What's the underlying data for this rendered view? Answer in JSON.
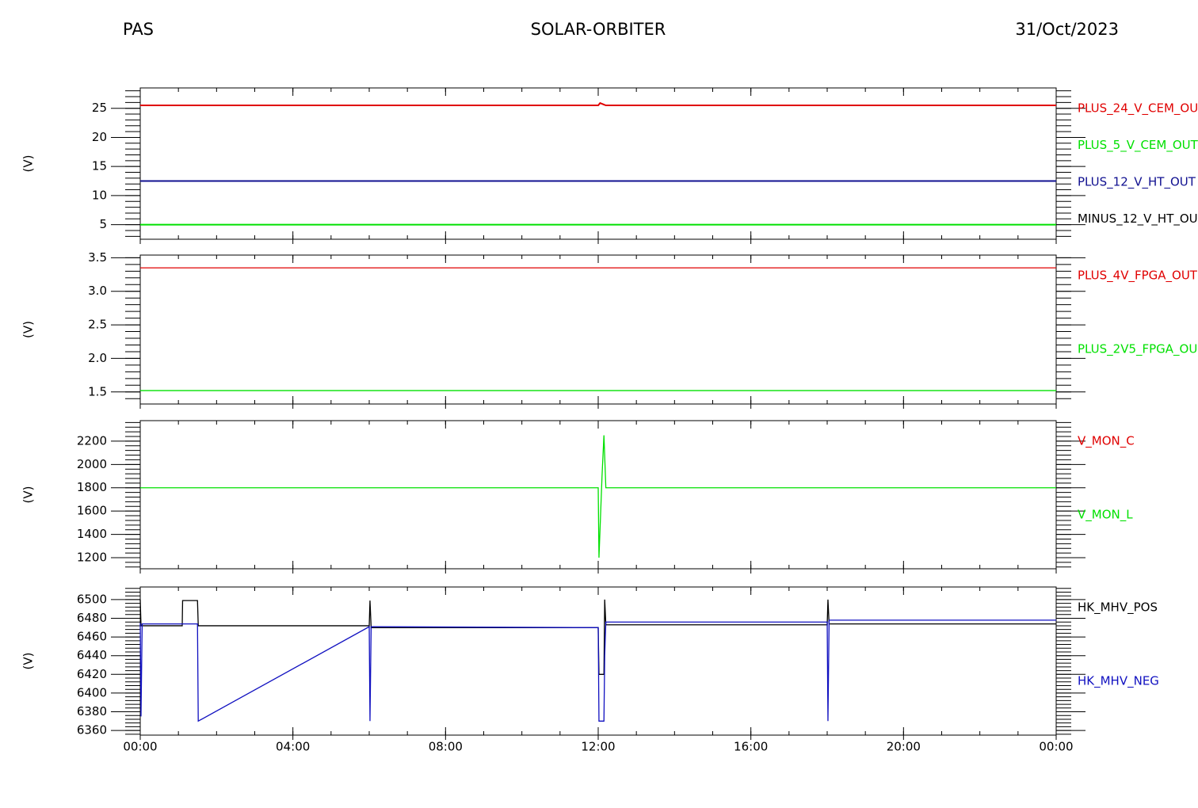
{
  "header": {
    "left": "PAS",
    "center": "SOLAR-ORBITER",
    "right": "31/Oct/2023"
  },
  "chart_data": [
    {
      "type": "line",
      "ylabel": "(V)",
      "ylim": [
        2.5,
        28.5
      ],
      "yticks": [
        5,
        10,
        15,
        20,
        25
      ],
      "xlim": [
        0,
        24
      ],
      "x": [
        0,
        12,
        12.05,
        12.2,
        24
      ],
      "series": [
        {
          "name": "PLUS_24_V_CEM_OU",
          "color": "#e00000",
          "values": [
            25.5,
            25.5,
            25.9,
            25.5,
            25.5
          ]
        },
        {
          "name": "PLUS_5_V_CEM_OUT",
          "color": "#00e000",
          "values": [
            5,
            5,
            5,
            5,
            5
          ]
        },
        {
          "name": "PLUS_12_V_HT_OUT",
          "color": "#101090",
          "values": [
            12.5,
            12.5,
            12.5,
            12.5,
            12.5
          ]
        },
        {
          "name": "MINUS_12_V_HT_OU",
          "color": "#000000",
          "values": [
            null,
            null,
            null,
            null,
            null
          ]
        }
      ]
    },
    {
      "type": "line",
      "ylabel": "(V)",
      "ylim": [
        1.32,
        3.54
      ],
      "yticks": [
        1.5,
        {
          "value": 2,
          "label": "2.0"
        },
        2.5,
        {
          "value": 3,
          "label": "3.0"
        },
        3.5
      ],
      "xlim": [
        0,
        24
      ],
      "x": [
        0,
        24
      ],
      "series": [
        {
          "name": "PLUS_4V_FPGA_OUT",
          "color": "#e00000",
          "values": [
            3.35,
            3.35
          ]
        },
        {
          "name": "PLUS_2V5_FPGA_OU",
          "color": "#00e000",
          "values": [
            1.52,
            1.52
          ]
        }
      ]
    },
    {
      "type": "line",
      "ylabel": "(V)",
      "ylim": [
        1105,
        2376
      ],
      "yticks": [
        1200,
        1400,
        1600,
        1800,
        2000,
        2200
      ],
      "xlim": [
        0,
        24
      ],
      "x": [
        0,
        12,
        12.02,
        12.1,
        12.15,
        12.2,
        24
      ],
      "series": [
        {
          "name": "V_MON_C",
          "color": "#e00000",
          "values": [
            null,
            null,
            null,
            null,
            null,
            null,
            null
          ]
        },
        {
          "name": "V_MON_L",
          "color": "#00e000",
          "values": [
            1800,
            1800,
            1200,
            1900,
            2250,
            1800,
            1800
          ]
        }
      ]
    },
    {
      "type": "line",
      "ylabel": "(V)",
      "ylim": [
        6355,
        6513.5
      ],
      "yticks": [
        6360,
        6380,
        6400,
        6420,
        6440,
        6460,
        6480,
        6500
      ],
      "xlim": [
        0,
        24
      ],
      "xticks": [
        {
          "value": 0,
          "label": "00:00"
        },
        {
          "value": 4,
          "label": "04:00"
        },
        {
          "value": 8,
          "label": "08:00"
        },
        {
          "value": 12,
          "label": "12:00"
        },
        {
          "value": 16,
          "label": "16:00"
        },
        {
          "value": 20,
          "label": "20:00"
        },
        {
          "value": 24,
          "label": "00:00"
        }
      ],
      "x": [
        0,
        0.02,
        0.05,
        1.1,
        1.11,
        1.5,
        1.52,
        6.0,
        6.02,
        6.05,
        12.0,
        12.02,
        12.15,
        12.17,
        12.2,
        18.0,
        18.02,
        18.05,
        24
      ],
      "series": [
        {
          "name": "HK_MHV_POS",
          "color": "#000000",
          "values": [
            6500,
            6472,
            6472,
            6472,
            6499,
            6499,
            6472,
            6472,
            6499,
            6470,
            6470,
            6420,
            6420,
            6500,
            6473,
            6473,
            6500,
            6474,
            6474
          ]
        },
        {
          "name": "HK_MHV_NEG",
          "color": "#1010c0",
          "values": [
            6475,
            6375,
            6474,
            6474,
            6474,
            6474,
            6370,
            6471,
            6370,
            6471,
            6470,
            6370,
            6370,
            6440,
            6476,
            6476,
            6370,
            6478,
            6478
          ]
        }
      ]
    }
  ]
}
